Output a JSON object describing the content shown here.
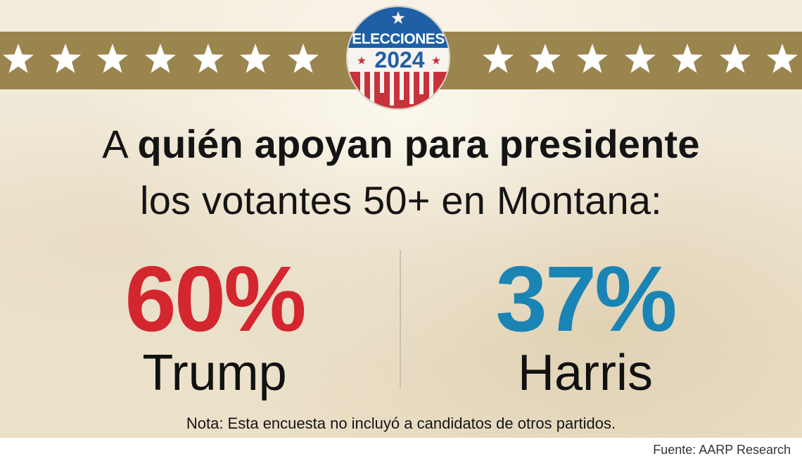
{
  "badge": {
    "line1": "ELECCIONES",
    "line2": "2024"
  },
  "headline": {
    "line1_lead": "A",
    "line1_bold": "quién apoyan para presidente",
    "line2": "los votantes 50+ en Montana:"
  },
  "results": [
    {
      "percent": "60%",
      "name": "Trump",
      "color": "#d4262f"
    },
    {
      "percent": "37%",
      "name": "Harris",
      "color": "#1a84b4"
    }
  ],
  "note": "Nota: Esta encuesta no incluyó a candidatos de otros partidos.",
  "source": "Fuente: AARP Research",
  "colors": {
    "band": "#9b854e",
    "background": "#f2ead9",
    "trump": "#d4262f",
    "harris": "#1a84b4",
    "badge_red": "#c8323a",
    "badge_blue": "#1f5fa6"
  },
  "icons": [
    "star-icon",
    "elecciones-2024-badge"
  ]
}
